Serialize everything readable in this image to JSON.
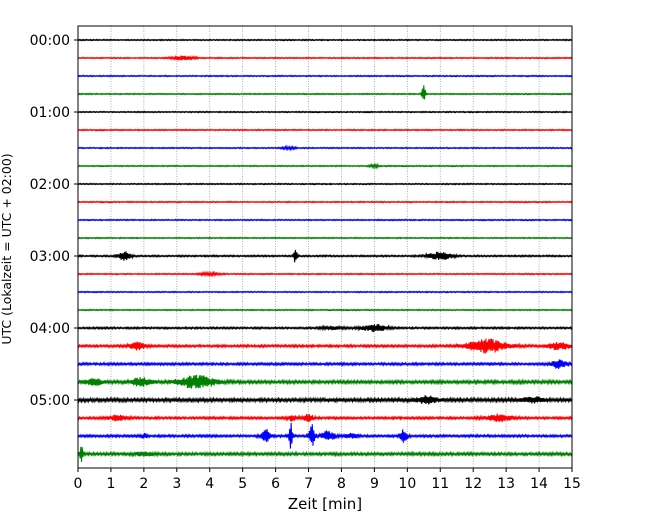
{
  "chart_data": {
    "type": "line",
    "title": "",
    "xlabel": "Zeit  [min]",
    "ylabel": "UTC (Lokalzeit = UTC + 02:00)",
    "xlim": [
      0,
      15
    ],
    "x_ticks": [
      "0",
      "1",
      "2",
      "3",
      "4",
      "5",
      "6",
      "7",
      "8",
      "9",
      "10",
      "11",
      "12",
      "13",
      "14",
      "15"
    ],
    "y_tick_labels": [
      "00:00",
      "01:00",
      "02:00",
      "03:00",
      "04:00",
      "05:00"
    ],
    "y_tick_trace_index": [
      0,
      4,
      8,
      12,
      16,
      20
    ],
    "grid": "vertical-dotted",
    "trace_minutes_each": 15,
    "trace_count": 24,
    "trace_colors": [
      "#000000",
      "#ff0000",
      "#0000ff",
      "#008000"
    ],
    "events": [
      {
        "trace": 1,
        "minute": 3.2,
        "amp": 0.18,
        "width": 0.35
      },
      {
        "trace": 3,
        "minute": 10.5,
        "amp": 0.95,
        "width": 0.05
      },
      {
        "trace": 6,
        "minute": 6.4,
        "amp": 0.1,
        "width": 0.2
      },
      {
        "trace": 7,
        "minute": 9.0,
        "amp": 0.12,
        "width": 0.15
      },
      {
        "trace": 12,
        "minute": 1.4,
        "amp": 0.4,
        "width": 0.2
      },
      {
        "trace": 12,
        "minute": 6.6,
        "amp": 0.7,
        "width": 0.05
      },
      {
        "trace": 12,
        "minute": 11.0,
        "amp": 0.35,
        "width": 0.35
      },
      {
        "trace": 13,
        "minute": 4.0,
        "amp": 0.12,
        "width": 0.3
      },
      {
        "trace": 16,
        "minute": 9.0,
        "amp": 0.3,
        "width": 0.4
      },
      {
        "trace": 16,
        "minute": 7.7,
        "amp": 0.12,
        "width": 0.3
      },
      {
        "trace": 17,
        "minute": 1.8,
        "amp": 0.3,
        "width": 0.25
      },
      {
        "trace": 17,
        "minute": 12.4,
        "amp": 0.6,
        "width": 0.6
      },
      {
        "trace": 17,
        "minute": 14.6,
        "amp": 0.35,
        "width": 0.3
      },
      {
        "trace": 18,
        "minute": 14.6,
        "amp": 0.4,
        "width": 0.2
      },
      {
        "trace": 19,
        "minute": 1.9,
        "amp": 0.35,
        "width": 0.3
      },
      {
        "trace": 19,
        "minute": 3.6,
        "amp": 0.55,
        "width": 0.55
      },
      {
        "trace": 19,
        "minute": 0.5,
        "amp": 0.25,
        "width": 0.3
      },
      {
        "trace": 20,
        "minute": 10.6,
        "amp": 0.3,
        "width": 0.3
      },
      {
        "trace": 20,
        "minute": 13.8,
        "amp": 0.25,
        "width": 0.3
      },
      {
        "trace": 21,
        "minute": 1.2,
        "amp": 0.22,
        "width": 0.3
      },
      {
        "trace": 21,
        "minute": 12.8,
        "amp": 0.3,
        "width": 0.4
      },
      {
        "trace": 21,
        "minute": 6.5,
        "amp": 0.25,
        "width": 0.15
      },
      {
        "trace": 21,
        "minute": 7.0,
        "amp": 0.3,
        "width": 0.15
      },
      {
        "trace": 22,
        "minute": 5.7,
        "amp": 0.55,
        "width": 0.15
      },
      {
        "trace": 22,
        "minute": 6.45,
        "amp": 1.4,
        "width": 0.05
      },
      {
        "trace": 22,
        "minute": 7.1,
        "amp": 1.1,
        "width": 0.08
      },
      {
        "trace": 22,
        "minute": 7.6,
        "amp": 0.45,
        "width": 0.2
      },
      {
        "trace": 22,
        "minute": 8.3,
        "amp": 0.2,
        "width": 0.2
      },
      {
        "trace": 22,
        "minute": 9.9,
        "amp": 0.6,
        "width": 0.1
      },
      {
        "trace": 22,
        "minute": 2.0,
        "amp": 0.2,
        "width": 0.1
      },
      {
        "trace": 23,
        "minute": 0.1,
        "amp": 0.85,
        "width": 0.05
      },
      {
        "trace": 23,
        "minute": 2.0,
        "amp": 0.15,
        "width": 0.3
      }
    ],
    "noise_level": [
      0.05,
      0.05,
      0.05,
      0.05,
      0.05,
      0.05,
      0.05,
      0.05,
      0.05,
      0.05,
      0.05,
      0.05,
      0.07,
      0.05,
      0.05,
      0.05,
      0.08,
      0.1,
      0.1,
      0.13,
      0.15,
      0.1,
      0.1,
      0.12
    ]
  }
}
